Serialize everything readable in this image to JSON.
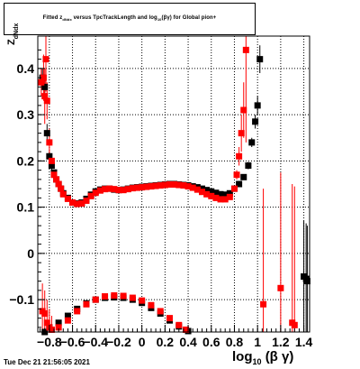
{
  "title": {
    "prefix": "Fitted z",
    "sub1": "dNdx",
    "mid": " versus TpcTrackLength and log",
    "sub2": "10",
    "suffix": "(βγ) for Global pion+"
  },
  "y_axis_label": {
    "main": "Z",
    "sub": "dNdx"
  },
  "x_axis_label": {
    "main": "log",
    "sub": "10",
    "suffix": "(β γ)"
  },
  "timestamp": "Tue Dec 21 21:56:05 2021",
  "colors": {
    "series_a": "#000000",
    "series_b": "#ff0000",
    "errors": "#ff0000"
  },
  "chart_data": {
    "type": "scatter",
    "xlim": [
      -0.9,
      1.45
    ],
    "ylim": [
      -0.17,
      0.47
    ],
    "grid": true,
    "grid_style": "dotted",
    "x_ticks": [
      -0.8,
      -0.6,
      -0.4,
      -0.2,
      0,
      0.2,
      0.4,
      0.6,
      0.8,
      1,
      1.2,
      1.4
    ],
    "x_tick_labels": [
      "−0.8",
      "−0.6",
      "−0.4",
      "−0.2",
      "0",
      "0.2",
      "0.4",
      "0.6",
      "0.8",
      "1",
      "1.2",
      "1.4"
    ],
    "y_ticks": [
      -0.1,
      0,
      0.1,
      0.2,
      0.3,
      0.4
    ],
    "y_tick_labels": [
      "−0.1",
      "0",
      "0.1",
      "0.2",
      "0.3",
      "0.4"
    ],
    "series": [
      {
        "marker": "square",
        "color": "#000000",
        "points": [
          [
            -0.86,
            0.38,
            0.02
          ],
          [
            -0.84,
            0.36,
            0.02
          ],
          [
            -0.82,
            0.26,
            0.02
          ],
          [
            -0.8,
            0.21,
            0.01
          ],
          [
            -0.78,
            0.19,
            0.01
          ],
          [
            -0.76,
            0.175,
            0.005
          ],
          [
            -0.74,
            0.16,
            0.004
          ],
          [
            -0.72,
            0.15,
            0.003
          ],
          [
            -0.7,
            0.14,
            0.002
          ],
          [
            -0.68,
            0.13,
            0.002
          ],
          [
            -0.64,
            0.12,
            0.001
          ],
          [
            -0.6,
            0.11,
            0.001
          ],
          [
            -0.56,
            0.108,
            0.001
          ],
          [
            -0.52,
            0.11,
            0.001
          ],
          [
            -0.48,
            0.118,
            0.001
          ],
          [
            -0.44,
            0.127,
            0.001
          ],
          [
            -0.4,
            0.134,
            0.001
          ],
          [
            -0.36,
            0.138,
            0.001
          ],
          [
            -0.32,
            0.14,
            0.001
          ],
          [
            -0.28,
            0.14,
            0.001
          ],
          [
            -0.24,
            0.138,
            0.001
          ],
          [
            -0.2,
            0.137,
            0.001
          ],
          [
            -0.16,
            0.138,
            0.001
          ],
          [
            -0.12,
            0.14,
            0.001
          ],
          [
            -0.08,
            0.142,
            0.001
          ],
          [
            -0.04,
            0.143,
            0.001
          ],
          [
            0.0,
            0.144,
            0.001
          ],
          [
            0.04,
            0.145,
            0.001
          ],
          [
            0.08,
            0.146,
            0.001
          ],
          [
            0.12,
            0.147,
            0.001
          ],
          [
            0.16,
            0.148,
            0.001
          ],
          [
            0.2,
            0.149,
            0.001
          ],
          [
            0.24,
            0.15,
            0.001
          ],
          [
            0.28,
            0.15,
            0.001
          ],
          [
            0.32,
            0.149,
            0.001
          ],
          [
            0.36,
            0.148,
            0.001
          ],
          [
            0.4,
            0.147,
            0.001
          ],
          [
            0.44,
            0.145,
            0.001
          ],
          [
            0.48,
            0.143,
            0.001
          ],
          [
            0.52,
            0.14,
            0.001
          ],
          [
            0.56,
            0.137,
            0.001
          ],
          [
            0.6,
            0.134,
            0.002
          ],
          [
            0.64,
            0.131,
            0.002
          ],
          [
            0.68,
            0.128,
            0.002
          ],
          [
            0.72,
            0.127,
            0.002
          ],
          [
            0.76,
            0.13,
            0.003
          ],
          [
            0.8,
            0.14,
            0.004
          ],
          [
            0.84,
            0.15,
            0.005
          ],
          [
            0.88,
            0.165,
            0.006
          ],
          [
            0.92,
            0.19,
            0.008
          ],
          [
            0.95,
            0.24,
            0.01
          ],
          [
            0.98,
            0.285,
            0.015
          ],
          [
            1.0,
            0.32,
            0.02
          ],
          [
            1.02,
            0.42,
            0.03
          ],
          [
            1.4,
            -0.05,
            0.12
          ],
          [
            1.42,
            -0.055,
            0.12
          ],
          [
            1.43,
            -0.06,
            0.12
          ],
          [
            -0.84,
            -0.17,
            0.01
          ],
          [
            -0.8,
            -0.16,
            0.01
          ],
          [
            -0.72,
            -0.15,
            0.005
          ],
          [
            -0.64,
            -0.135,
            0.004
          ],
          [
            -0.56,
            -0.12,
            0.003
          ],
          [
            -0.48,
            -0.108,
            0.002
          ],
          [
            -0.4,
            -0.1,
            0.002
          ],
          [
            -0.32,
            -0.096,
            0.002
          ],
          [
            -0.24,
            -0.095,
            0.002
          ],
          [
            -0.16,
            -0.096,
            0.002
          ],
          [
            -0.08,
            -0.1,
            0.002
          ],
          [
            0.0,
            -0.107,
            0.002
          ],
          [
            0.08,
            -0.118,
            0.002
          ],
          [
            0.16,
            -0.13,
            0.003
          ],
          [
            0.24,
            -0.145,
            0.003
          ],
          [
            0.32,
            -0.158,
            0.004
          ],
          [
            0.4,
            -0.168,
            0.005
          ]
        ]
      },
      {
        "marker": "square",
        "color": "#ff0000",
        "points": [
          [
            -0.87,
            0.37,
            0.03
          ],
          [
            -0.85,
            0.38,
            0.05
          ],
          [
            -0.84,
            0.34,
            0.06
          ],
          [
            -0.83,
            0.42,
            0.07
          ],
          [
            -0.82,
            0.33,
            0.04
          ],
          [
            -0.8,
            0.24,
            0.03
          ],
          [
            -0.78,
            0.2,
            0.015
          ],
          [
            -0.76,
            0.17,
            0.01
          ],
          [
            -0.74,
            0.16,
            0.006
          ],
          [
            -0.72,
            0.15,
            0.004
          ],
          [
            -0.7,
            0.14,
            0.003
          ],
          [
            -0.68,
            0.128,
            0.002
          ],
          [
            -0.64,
            0.118,
            0.002
          ],
          [
            -0.6,
            0.11,
            0.001
          ],
          [
            -0.56,
            0.107,
            0.001
          ],
          [
            -0.52,
            0.108,
            0.001
          ],
          [
            -0.48,
            0.114,
            0.001
          ],
          [
            -0.44,
            0.124,
            0.001
          ],
          [
            -0.4,
            0.131,
            0.001
          ],
          [
            -0.36,
            0.136,
            0.001
          ],
          [
            -0.32,
            0.139,
            0.001
          ],
          [
            -0.28,
            0.14,
            0.001
          ],
          [
            -0.24,
            0.139,
            0.001
          ],
          [
            -0.2,
            0.137,
            0.001
          ],
          [
            -0.16,
            0.137,
            0.001
          ],
          [
            -0.12,
            0.139,
            0.001
          ],
          [
            -0.08,
            0.141,
            0.001
          ],
          [
            -0.04,
            0.142,
            0.001
          ],
          [
            0.0,
            0.143,
            0.001
          ],
          [
            0.04,
            0.144,
            0.001
          ],
          [
            0.08,
            0.145,
            0.001
          ],
          [
            0.12,
            0.146,
            0.001
          ],
          [
            0.16,
            0.147,
            0.001
          ],
          [
            0.2,
            0.148,
            0.001
          ],
          [
            0.24,
            0.149,
            0.001
          ],
          [
            0.28,
            0.149,
            0.001
          ],
          [
            0.32,
            0.148,
            0.001
          ],
          [
            0.36,
            0.147,
            0.001
          ],
          [
            0.4,
            0.145,
            0.001
          ],
          [
            0.44,
            0.142,
            0.001
          ],
          [
            0.48,
            0.138,
            0.001
          ],
          [
            0.52,
            0.133,
            0.001
          ],
          [
            0.56,
            0.128,
            0.001
          ],
          [
            0.6,
            0.124,
            0.002
          ],
          [
            0.64,
            0.12,
            0.002
          ],
          [
            0.68,
            0.117,
            0.002
          ],
          [
            0.72,
            0.117,
            0.002
          ],
          [
            0.76,
            0.122,
            0.003
          ],
          [
            0.8,
            0.14,
            0.005
          ],
          [
            0.82,
            0.17,
            0.01
          ],
          [
            0.84,
            0.21,
            0.02
          ],
          [
            0.86,
            0.26,
            0.04
          ],
          [
            0.88,
            0.31,
            0.06
          ],
          [
            0.9,
            0.44,
            0.2
          ],
          [
            1.05,
            -0.11,
            0.25
          ],
          [
            1.2,
            -0.075,
            0.25
          ],
          [
            1.3,
            -0.15,
            0.3
          ],
          [
            1.32,
            -0.155,
            0.3
          ],
          [
            -0.86,
            -0.125,
            0.06
          ],
          [
            -0.84,
            -0.13,
            0.05
          ],
          [
            -0.82,
            -0.15,
            0.05
          ],
          [
            -0.8,
            -0.16,
            0.04
          ],
          [
            -0.78,
            -0.165,
            0.03
          ],
          [
            -0.72,
            -0.16,
            0.01
          ],
          [
            -0.64,
            -0.145,
            0.006
          ],
          [
            -0.56,
            -0.125,
            0.004
          ],
          [
            -0.48,
            -0.11,
            0.003
          ],
          [
            -0.4,
            -0.1,
            0.002
          ],
          [
            -0.32,
            -0.093,
            0.002
          ],
          [
            -0.24,
            -0.091,
            0.002
          ],
          [
            -0.16,
            -0.092,
            0.002
          ],
          [
            -0.08,
            -0.096,
            0.002
          ],
          [
            0.0,
            -0.102,
            0.002
          ],
          [
            0.08,
            -0.112,
            0.002
          ],
          [
            0.16,
            -0.125,
            0.003
          ],
          [
            0.24,
            -0.14,
            0.003
          ],
          [
            0.32,
            -0.155,
            0.004
          ],
          [
            0.38,
            -0.165,
            0.005
          ]
        ]
      }
    ]
  }
}
